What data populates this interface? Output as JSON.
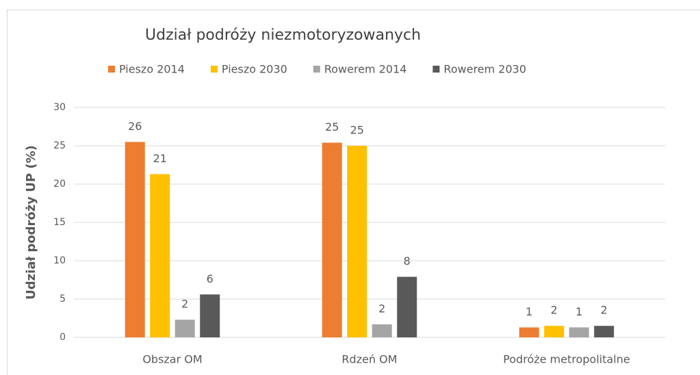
{
  "chart_data": {
    "type": "bar",
    "title": "Udział podróży niezmotoryzowanych",
    "y_label": "Udział podróży UP (%)",
    "categories": [
      "Obszar OM",
      "Rdzeń OM",
      "Podróże metropolitalne"
    ],
    "series": [
      {
        "name": "Pieszo 2014",
        "color": "#ed7d31",
        "values": [
          25.5,
          25.4,
          1.3
        ],
        "value_labels": [
          "26",
          "25",
          "1"
        ]
      },
      {
        "name": "Pieszo 2030",
        "color": "#ffc000",
        "values": [
          21.3,
          25.0,
          1.5
        ],
        "value_labels": [
          "21",
          "25",
          "2"
        ]
      },
      {
        "name": "Rowerem 2014",
        "color": "#a5a5a5",
        "values": [
          2.3,
          1.7,
          1.3
        ],
        "value_labels": [
          "2",
          "2",
          "1"
        ]
      },
      {
        "name": "Rowerem 2030",
        "color": "#595959",
        "values": [
          5.6,
          7.9,
          1.5
        ],
        "value_labels": [
          "6",
          "8",
          "2"
        ]
      }
    ],
    "ylim": [
      0,
      30
    ],
    "yticks": [
      0,
      5,
      10,
      15,
      20,
      25,
      30
    ],
    "grid": true,
    "legend": "top"
  }
}
